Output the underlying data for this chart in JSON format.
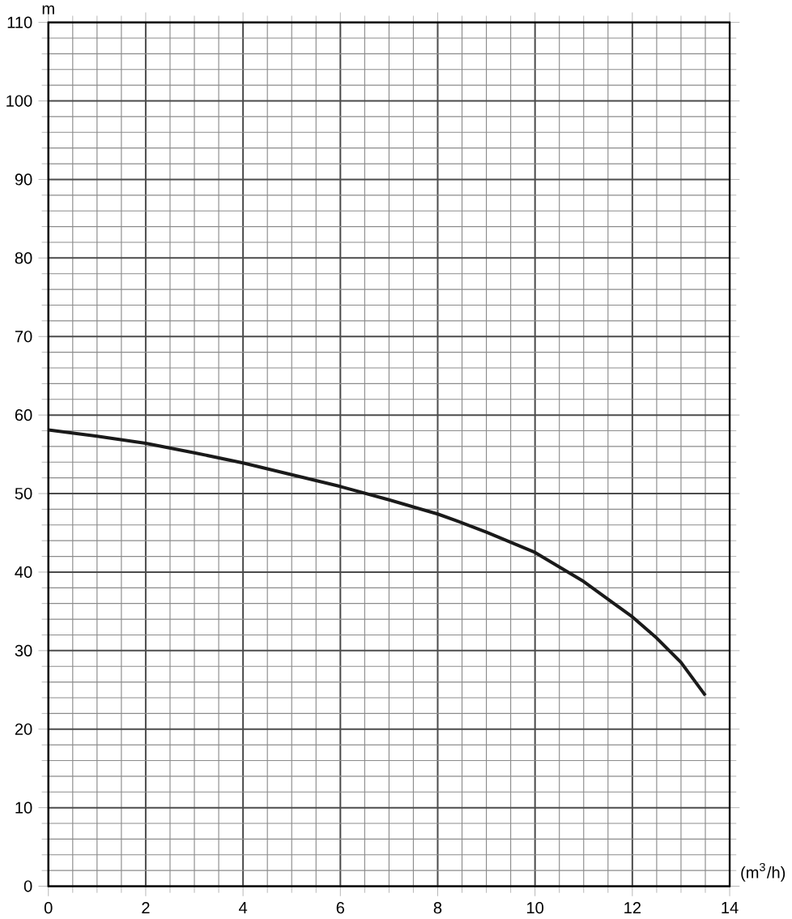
{
  "chart_data": {
    "type": "line",
    "xlabel": "(m$^{3}$/h)",
    "ylabel": "m",
    "xlim": [
      0,
      14
    ],
    "ylim": [
      0,
      110
    ],
    "xticks": [
      0,
      2,
      4,
      6,
      8,
      10,
      12,
      14
    ],
    "yticks": [
      0,
      10,
      20,
      30,
      40,
      50,
      60,
      70,
      80,
      90,
      100,
      110
    ],
    "grid": true,
    "series": [
      {
        "color": "#1a1a1a",
        "x": [
          0,
          1,
          2,
          3,
          4,
          5,
          6,
          7,
          8,
          8.4,
          9,
          10,
          11,
          12,
          12.5,
          13,
          13.5
        ],
        "values": [
          58.1,
          57.3,
          56.4,
          55.2,
          53.9,
          52.4,
          50.9,
          49.2,
          47.4,
          46.5,
          45.1,
          42.5,
          38.8,
          34.3,
          31.6,
          28.5,
          24.3
        ]
      }
    ]
  }
}
